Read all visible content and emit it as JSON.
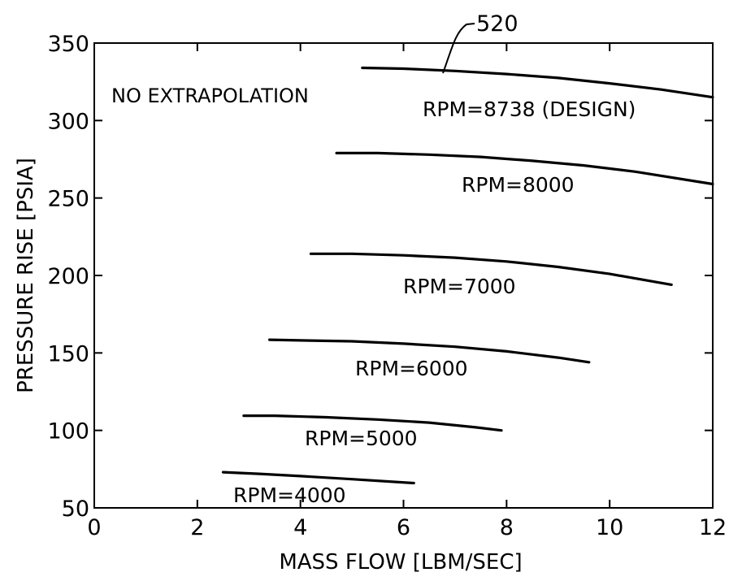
{
  "chart_data": {
    "type": "line",
    "xlabel": "MASS FLOW [LBM/SEC]",
    "ylabel": "PRESSURE RISE [PSIA]",
    "xlim": [
      0,
      12
    ],
    "ylim": [
      50,
      350
    ],
    "xticks": [
      0,
      2,
      4,
      6,
      8,
      10,
      12
    ],
    "yticks": [
      50,
      100,
      150,
      200,
      250,
      300,
      350
    ],
    "grid": false,
    "annotations": {
      "note": "NO EXTRAPOLATION",
      "reference": "520"
    },
    "series": [
      {
        "name": "RPM=8738 (DESIGN)",
        "x": [
          5.2,
          6.0,
          7.0,
          8.0,
          9.0,
          10.0,
          11.0,
          12.0
        ],
        "y": [
          334,
          333.5,
          332,
          330,
          327.5,
          324,
          320,
          315
        ]
      },
      {
        "name": "RPM=8000",
        "x": [
          4.7,
          5.5,
          6.5,
          7.5,
          8.5,
          9.5,
          10.5,
          12.0
        ],
        "y": [
          279,
          279,
          278,
          276.5,
          274,
          271,
          267,
          259
        ]
      },
      {
        "name": "RPM=7000",
        "x": [
          4.2,
          5.0,
          6.0,
          7.0,
          8.0,
          9.0,
          10.0,
          11.2
        ],
        "y": [
          214,
          214,
          213,
          211.5,
          209,
          205.5,
          201,
          194
        ]
      },
      {
        "name": "RPM=6000",
        "x": [
          3.4,
          4.2,
          5.0,
          6.0,
          7.0,
          8.0,
          9.0,
          9.6
        ],
        "y": [
          158.5,
          158,
          157.5,
          156,
          154,
          151,
          147,
          144
        ]
      },
      {
        "name": "RPM=5000",
        "x": [
          2.9,
          3.5,
          4.5,
          5.5,
          6.5,
          7.4,
          7.9
        ],
        "y": [
          109.5,
          109.5,
          108.5,
          107,
          105,
          102,
          100
        ]
      },
      {
        "name": "RPM=4000",
        "x": [
          2.5,
          3.2,
          4.0,
          5.0,
          6.2
        ],
        "y": [
          73,
          72,
          70.5,
          68.5,
          66
        ]
      }
    ]
  }
}
